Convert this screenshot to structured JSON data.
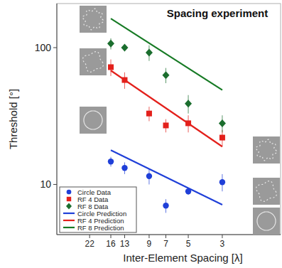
{
  "chart_data": {
    "type": "scatter",
    "title": "Spacing experiment",
    "x_label": "Inter-Element Spacing [λ]",
    "y_label": "Threshold [°]",
    "log": true,
    "xlim": [
      36,
      1.25
    ],
    "xticks": [
      22,
      16,
      13,
      9,
      7,
      5,
      3
    ],
    "ylim": [
      4.3,
      210
    ],
    "yticks": [
      10,
      100
    ],
    "legend": "bottom-left",
    "series": [
      {
        "name": "Circle Data",
        "type": "scatter",
        "color": "#1f3fd8",
        "marker": "circle",
        "x": [
          16,
          13,
          9,
          7,
          5,
          3
        ],
        "values": [
          14.7,
          13.2,
          11.5,
          7.0,
          8.9,
          10.4
        ],
        "errors": [
          1.2,
          1.3,
          1.5,
          0.8,
          0.5,
          1.5
        ]
      },
      {
        "name": "RF 4 Data",
        "type": "scatter",
        "color": "#e3201b",
        "marker": "square",
        "x": [
          16,
          13,
          9,
          7,
          5,
          3
        ],
        "values": [
          72,
          58,
          33,
          27,
          28,
          22
        ],
        "errors": [
          10,
          8,
          4,
          3,
          4,
          3
        ]
      },
      {
        "name": "RF 8 Data",
        "type": "scatter",
        "color": "#1b6e2e",
        "marker": "diamond",
        "x": [
          16,
          13,
          9,
          7,
          5,
          3
        ],
        "values": [
          107,
          100,
          92,
          63,
          39,
          28
        ],
        "errors": [
          10,
          6,
          12,
          8,
          6,
          4
        ]
      },
      {
        "name": "Circle Prediction",
        "type": "line",
        "color": "#1f3fd8",
        "line_style": "solid",
        "x": [
          16,
          3
        ],
        "values": [
          17.8,
          7.1
        ]
      },
      {
        "name": "RF 4 Prediction",
        "type": "line",
        "color": "#e3201b",
        "line_style": "solid",
        "x": [
          16,
          3
        ],
        "values": [
          68,
          18.9
        ]
      },
      {
        "name": "RF 8 Prediction",
        "type": "line",
        "color": "#167a24",
        "line_style": "solid",
        "x": [
          16,
          3
        ],
        "values": [
          163,
          49
        ]
      }
    ]
  }
}
